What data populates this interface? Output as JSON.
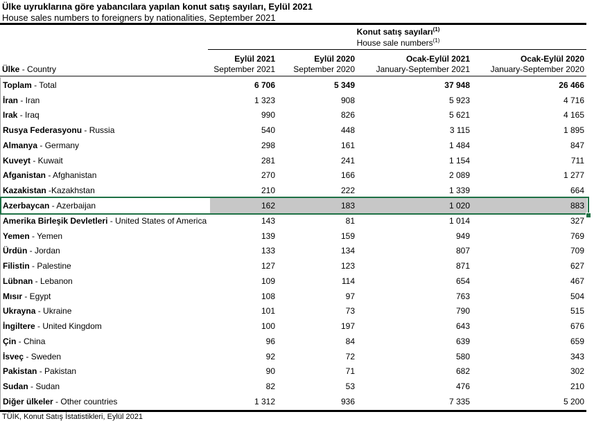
{
  "title": "Ülke uyruklarına göre yabancılara yapılan konut satış sayıları, Eylül 2021",
  "subtitle": "House sales numbers to foreigners by nationalities, September 2021",
  "table": {
    "group_header": {
      "tr": "Konut satış sayıları",
      "en": "House sale numbers",
      "footnote_marker": "(1)"
    },
    "country_header": {
      "tr": "Ülke",
      "rest": " - Country"
    },
    "columns": [
      {
        "tr": "Eylül 2021",
        "en": "September 2021"
      },
      {
        "tr": "Eylül 2020",
        "en": "September 2020"
      },
      {
        "tr": "Ocak-Eylül 2021",
        "en": "January-September 2021"
      },
      {
        "tr": "Ocak-Eylül 2020",
        "en": "January-September 2020"
      }
    ],
    "rows": [
      {
        "tr": "Toplam",
        "rest": " - Total",
        "values": [
          "6 706",
          "5 349",
          "37 948",
          "26 466"
        ],
        "bold_values": true
      },
      {
        "tr": "İran",
        "rest": " - Iran",
        "values": [
          "1 323",
          "908",
          "5 923",
          "4 716"
        ]
      },
      {
        "tr": "Irak",
        "rest": " - Iraq",
        "values": [
          "990",
          "826",
          "5 621",
          "4 165"
        ]
      },
      {
        "tr": "Rusya Federasyonu",
        "rest": " - Russia",
        "values": [
          "540",
          "448",
          "3 115",
          "1 895"
        ]
      },
      {
        "tr": "Almanya",
        "rest": " - Germany",
        "values": [
          "298",
          "161",
          "1 484",
          "847"
        ]
      },
      {
        "tr": "Kuveyt",
        "rest": " - Kuwait",
        "values": [
          "281",
          "241",
          "1 154",
          "711"
        ]
      },
      {
        "tr": "Afganistan",
        "rest": " - Afghanistan",
        "values": [
          "270",
          "166",
          "2 089",
          "1 277"
        ]
      },
      {
        "tr": "Kazakistan",
        "rest": " -Kazakhstan",
        "values": [
          "210",
          "222",
          "1 339",
          "664"
        ]
      },
      {
        "tr": "Azerbaycan",
        "rest": " - Azerbaijan",
        "values": [
          "162",
          "183",
          "1 020",
          "883"
        ],
        "selected": true
      },
      {
        "tr": "Amerika Birleşik Devletleri",
        "rest": " - United States of America",
        "values": [
          "143",
          "81",
          "1 014",
          "327"
        ]
      },
      {
        "tr": "Yemen",
        "rest": " - Yemen",
        "values": [
          "139",
          "159",
          "949",
          "769"
        ]
      },
      {
        "tr": "Ürdün",
        "rest": " - Jordan",
        "values": [
          "133",
          "134",
          "807",
          "709"
        ]
      },
      {
        "tr": "Filistin",
        "rest": " - Palestine",
        "values": [
          "127",
          "123",
          "871",
          "627"
        ]
      },
      {
        "tr": "Lübnan",
        "rest": " - Lebanon",
        "values": [
          "109",
          "114",
          "654",
          "467"
        ]
      },
      {
        "tr": "Mısır",
        "rest": " - Egypt",
        "values": [
          "108",
          "97",
          "763",
          "504"
        ]
      },
      {
        "tr": "Ukrayna",
        "rest": " - Ukraine",
        "values": [
          "101",
          "73",
          "790",
          "515"
        ]
      },
      {
        "tr": "İngiltere",
        "rest": " - United Kingdom",
        "values": [
          "100",
          "197",
          "643",
          "676"
        ]
      },
      {
        "tr": "Çin",
        "rest": " - China",
        "values": [
          "96",
          "84",
          "639",
          "659"
        ]
      },
      {
        "tr": "İsveç",
        "rest": " - Sweden",
        "values": [
          "92",
          "72",
          "580",
          "343"
        ]
      },
      {
        "tr": "Pakistan",
        "rest": " - Pakistan",
        "values": [
          "90",
          "71",
          "682",
          "302"
        ]
      },
      {
        "tr": "Sudan",
        "rest": " - Sudan",
        "values": [
          "82",
          "53",
          "476",
          "210"
        ]
      },
      {
        "tr": "Diğer ülkeler",
        "rest": " - Other countries",
        "values": [
          "1 312",
          "936",
          "7 335",
          "5 200"
        ]
      }
    ]
  },
  "footnote_clipped": "TÜİK, Konut Satış İstatistikleri, Eylül 2021",
  "colors": {
    "selection_green": "#1e7145",
    "selection_gray": "#c7c7c7",
    "rule_black": "#000000",
    "rule_gray": "#7f7f7f"
  }
}
